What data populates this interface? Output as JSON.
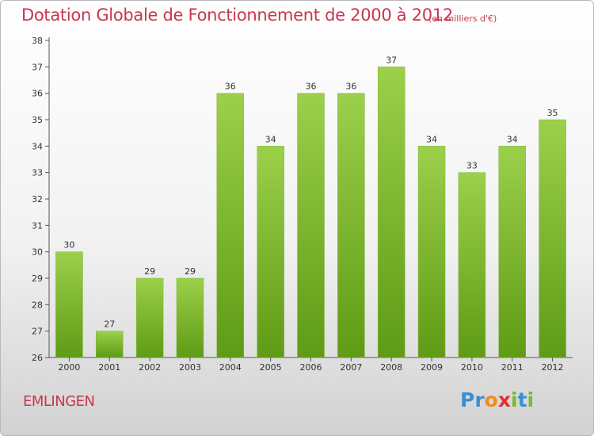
{
  "header": {
    "title": "Dotation Globale de Fonctionnement de 2000 à 2012",
    "unit": "(en milliers d'€)"
  },
  "footer": {
    "commune": "EMLINGEN",
    "brand": "Proxiti",
    "brand_letters": [
      {
        "ch": "P",
        "color": "#3b8fd1"
      },
      {
        "ch": "r",
        "color": "#3b8fd1"
      },
      {
        "ch": "o",
        "color": "#f08a1c"
      },
      {
        "ch": "x",
        "color": "#e0302f"
      },
      {
        "ch": "i",
        "color": "#7cb82f"
      },
      {
        "ch": "t",
        "color": "#3b8fd1"
      },
      {
        "ch": "i",
        "color": "#7cb82f"
      }
    ]
  },
  "colors": {
    "bar_light": "#9bd04a",
    "bar_dark": "#5f9b16",
    "title": "#c8364f"
  },
  "chart_data": {
    "type": "bar",
    "categories": [
      "2000",
      "2001",
      "2002",
      "2003",
      "2004",
      "2005",
      "2006",
      "2007",
      "2008",
      "2009",
      "2010",
      "2011",
      "2012"
    ],
    "values": [
      30,
      27,
      29,
      29,
      36,
      34,
      36,
      36,
      37,
      34,
      33,
      34,
      35
    ],
    "ylim": [
      26,
      38
    ],
    "yticks": [
      26,
      27,
      28,
      29,
      30,
      31,
      32,
      33,
      34,
      35,
      36,
      37,
      38
    ],
    "grid": false
  }
}
